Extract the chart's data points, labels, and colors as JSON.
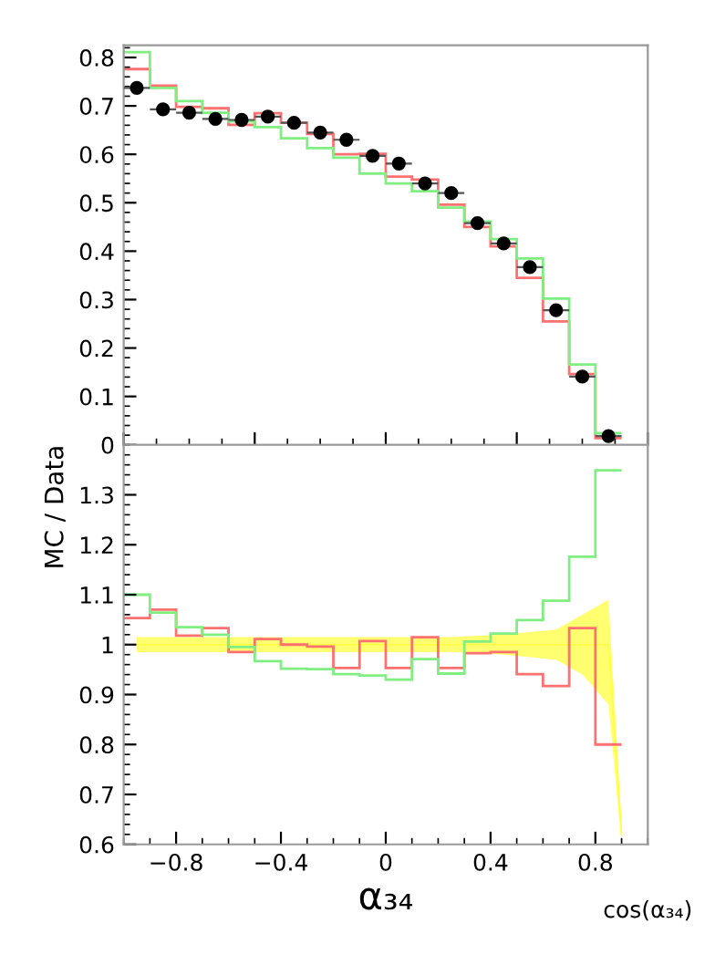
{
  "chart_data": [
    {
      "type": "histogram",
      "bins": [
        -1.0,
        -0.9,
        -0.8,
        -0.7,
        -0.6,
        -0.5,
        -0.4,
        -0.3,
        -0.2,
        -0.1,
        0.0,
        0.1,
        0.2,
        0.3,
        0.4,
        0.5,
        0.6,
        0.7,
        0.8,
        0.9
      ],
      "series": [
        {
          "color": "#ff7070",
          "values": [
            0.776,
            0.742,
            0.698,
            0.695,
            0.661,
            0.685,
            0.665,
            0.642,
            0.6,
            0.601,
            0.554,
            0.548,
            0.496,
            0.45,
            0.41,
            0.345,
            0.255,
            0.146,
            0.014
          ]
        },
        {
          "color": "#80ee80",
          "values": [
            0.811,
            0.737,
            0.71,
            0.686,
            0.668,
            0.656,
            0.633,
            0.613,
            0.593,
            0.56,
            0.54,
            0.524,
            0.49,
            0.461,
            0.425,
            0.385,
            0.302,
            0.166,
            0.024
          ]
        },
        {
          "type": "scatter",
          "color": "#000000",
          "x": [
            -0.95,
            -0.85,
            -0.75,
            -0.65,
            -0.55,
            -0.45,
            -0.35,
            -0.25,
            -0.15,
            -0.05,
            0.05,
            0.15,
            0.25,
            0.35,
            0.45,
            0.55,
            0.65,
            0.75,
            0.85
          ],
          "values": [
            0.737,
            0.693,
            0.686,
            0.673,
            0.671,
            0.678,
            0.665,
            0.645,
            0.63,
            0.597,
            0.581,
            0.54,
            0.52,
            0.458,
            0.416,
            0.367,
            0.278,
            0.141,
            0.018
          ],
          "xerrors": [
            0.05,
            0.05,
            0.05,
            0.05,
            0.05,
            0.05,
            0.05,
            0.05,
            0.05,
            0.05,
            0.05,
            0.05,
            0.05,
            0.05,
            0.05,
            0.05,
            0.05,
            0.05,
            0.05
          ]
        }
      ],
      "xlim": [
        -1.0,
        1.0
      ],
      "ylim": [
        0,
        0.825
      ],
      "yticks": [
        0,
        0.1,
        0.2,
        0.3,
        0.4,
        0.5,
        0.6,
        0.7,
        0.8
      ],
      "tick_labels": "y",
      "marker": "circle"
    },
    {
      "type": "histogram",
      "bins": [
        -1.0,
        -0.9,
        -0.8,
        -0.7,
        -0.6,
        -0.5,
        -0.4,
        -0.3,
        -0.2,
        -0.1,
        0.0,
        0.1,
        0.2,
        0.3,
        0.4,
        0.5,
        0.6,
        0.7,
        0.8,
        0.9
      ],
      "series": [
        {
          "type": "line",
          "color": "#ffff40",
          "x": [
            -0.95,
            -0.85,
            -0.75,
            -0.65,
            -0.55,
            -0.45,
            -0.35,
            -0.25,
            -0.15,
            -0.05,
            0.05,
            0.15,
            0.25,
            0.35,
            0.45,
            0.55,
            0.65,
            0.75,
            0.85,
            0.9
          ],
          "values": [
            1,
            1,
            1,
            1,
            1,
            1,
            1,
            1,
            1,
            1,
            1,
            1,
            1,
            1,
            1,
            1,
            1,
            1,
            1,
            0.62
          ],
          "lower": [
            0.985,
            0.985,
            0.985,
            0.985,
            0.985,
            0.985,
            0.985,
            0.985,
            0.985,
            0.985,
            0.985,
            0.985,
            0.985,
            0.983,
            0.98,
            0.975,
            0.97,
            0.94,
            0.88,
            0.6
          ],
          "upper": [
            1.015,
            1.015,
            1.015,
            1.015,
            1.015,
            1.015,
            1.015,
            1.015,
            1.015,
            1.015,
            1.015,
            1.015,
            1.015,
            1.018,
            1.02,
            1.025,
            1.03,
            1.06,
            1.09,
            0.64
          ]
        },
        {
          "color": "#ff7070",
          "values": [
            1.053,
            1.07,
            1.018,
            1.033,
            0.985,
            1.011,
            1.0,
            0.996,
            0.953,
            1.007,
            0.953,
            1.015,
            0.953,
            0.983,
            0.985,
            0.941,
            0.917,
            1.033,
            0.8
          ]
        },
        {
          "color": "#80ee80",
          "values": [
            1.1,
            1.064,
            1.035,
            1.02,
            0.995,
            0.967,
            0.952,
            0.951,
            0.941,
            0.938,
            0.93,
            0.971,
            0.942,
            1.006,
            1.022,
            1.049,
            1.088,
            1.176,
            1.349
          ]
        }
      ],
      "xlim": [
        -1.0,
        1.0
      ],
      "xticks": [
        -0.8,
        -0.4,
        0,
        0.4,
        0.8
      ],
      "ylim": [
        0.6,
        1.4
      ],
      "yticks": [
        0.6,
        0.7,
        0.8,
        0.9,
        1,
        1.1,
        1.2,
        1.3
      ],
      "xlabel": "α₃₄",
      "ylabel": "MC / Data",
      "annotations": [
        "cos(α₃₄)"
      ]
    }
  ]
}
